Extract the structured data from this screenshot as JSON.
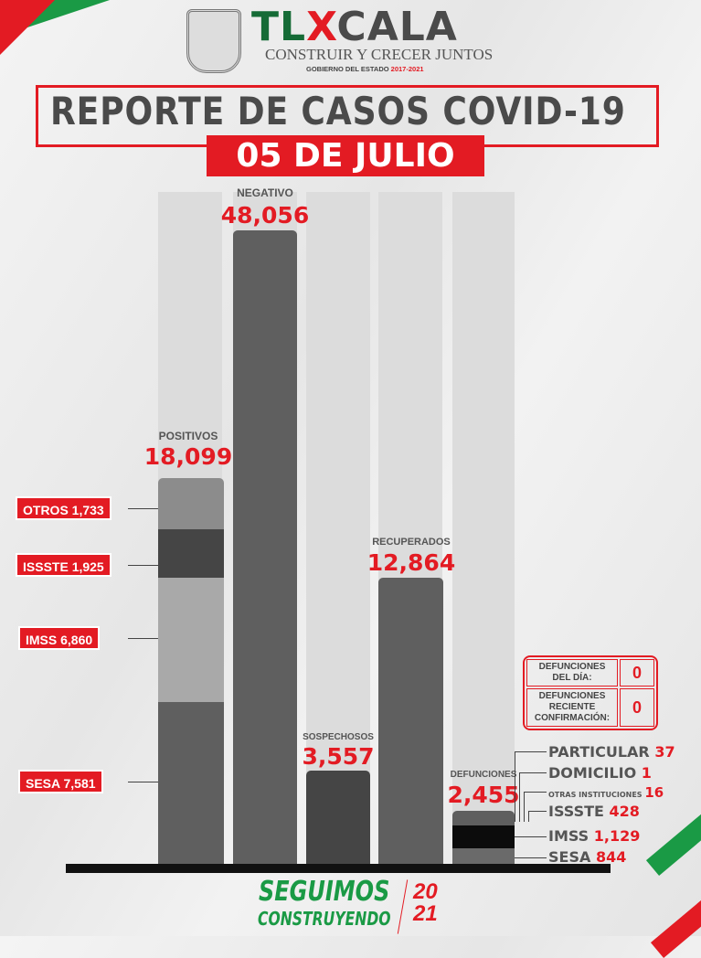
{
  "header": {
    "logo_text": "TLAXCALA",
    "tagline": "CONSTRUIR Y CRECER JUNTOS",
    "gobierno": "GOBIERNO DEL ESTADO",
    "period": "2017-2021",
    "title": "REPORTE DE CASOS COVID-19",
    "date": "05 DE JULIO"
  },
  "colors": {
    "accent": "#e31b23",
    "green": "#1a9a45",
    "bar": "#5f5f5f"
  },
  "chart_data": {
    "type": "bar",
    "categories": [
      "POSITIVOS",
      "NEGATIVO",
      "SOSPECHOSOS",
      "RECUPERADOS",
      "DEFUNCIONES"
    ],
    "values": [
      "18,099",
      "48,056",
      "3,557",
      "12,864",
      "2,455"
    ],
    "positivos_breakdown": [
      {
        "name": "OTROS",
        "value": "1,733"
      },
      {
        "name": "ISSSTE",
        "value": "1,925"
      },
      {
        "name": "IMSS",
        "value": "6,860"
      },
      {
        "name": "SESA",
        "value": "7,581"
      }
    ],
    "defunciones_breakdown": [
      {
        "name": "PARTICULAR",
        "value": "37"
      },
      {
        "name": "DOMICILIO",
        "value": "1"
      },
      {
        "name": "OTRAS INSTITUCIONES",
        "value": "16"
      },
      {
        "name": "ISSSTE",
        "value": "428"
      },
      {
        "name": "IMSS",
        "value": "1,129"
      },
      {
        "name": "SESA",
        "value": "844"
      }
    ]
  },
  "defunciones_table": [
    {
      "label1": "DEFUNCIONES",
      "label2": "DEL DÍA:",
      "label3": "",
      "value": "0"
    },
    {
      "label1": "DEFUNCIONES",
      "label2": "RECIENTE",
      "label3": "CONFIRMACIÓN:",
      "value": "0"
    }
  ],
  "footer": {
    "line1": "SEGUIMOS",
    "line2": "CONSTRUYENDO",
    "year1": "20",
    "year2": "21"
  }
}
